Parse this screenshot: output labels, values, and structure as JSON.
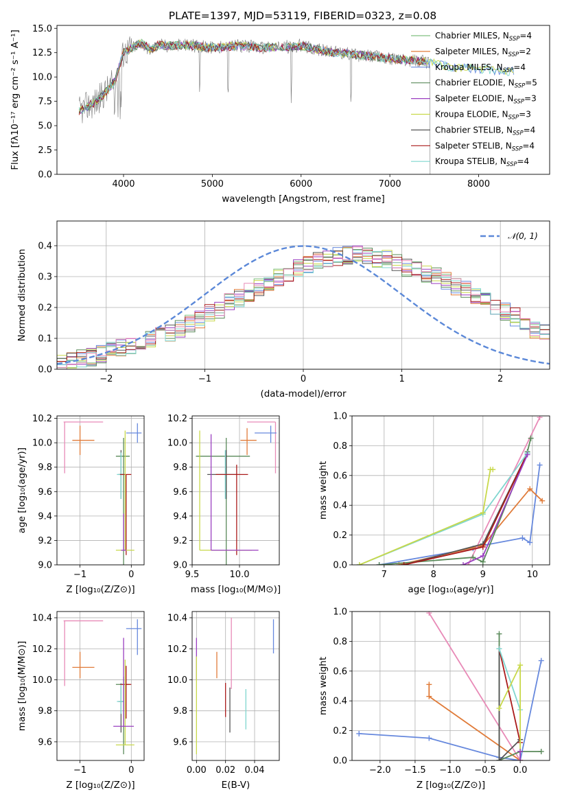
{
  "figure": {
    "title": "PLATE=1397, MJD=53119, FIBERID=0323, z=0.08"
  },
  "colors": {
    "mpl_blue": "#6688dd",
    "mpl_orange": "#e07b39",
    "mpl_green": "#5a8a5a",
    "mpl_purple": "#9a3fc0",
    "mpl_yellow": "#c8d84a",
    "mpl_dgray": "#555555",
    "mpl_red": "#aa1a1a",
    "mpl_cyan": "#7fd6cf",
    "mpl_pink": "#e88ab7"
  },
  "chart_data": [
    {
      "type": "line",
      "panel": "spectrum",
      "xlabel": "wavelength [Angstrom, rest frame]",
      "ylabel": "Flux [fλ10⁻¹⁷ erg cm⁻² s⁻¹ A⁻¹]",
      "xlim": [
        3250,
        8800
      ],
      "ylim": [
        0,
        15.3
      ],
      "xticks": [
        4000,
        5000,
        6000,
        7000,
        8000
      ],
      "yticks": [
        0.0,
        2.5,
        5.0,
        7.5,
        10.0,
        12.5,
        15.0
      ],
      "legend_position": "upper right",
      "legend": [
        {
          "label": "Chabrier MILES, N",
          "sub": "SSP",
          "eq": "=4",
          "color": "#7fbf7f"
        },
        {
          "label": "Salpeter MILES, N",
          "sub": "SSP",
          "eq": "=2",
          "color": "#e07b39"
        },
        {
          "label": "Kroupa MILES, N",
          "sub": "SSP",
          "eq": "=4",
          "color": "#6688dd"
        },
        {
          "label": "Chabrier ELODIE, N",
          "sub": "SSP",
          "eq": "=5",
          "color": "#5a8a5a"
        },
        {
          "label": "Salpeter ELODIE, N",
          "sub": "SSP",
          "eq": "=3",
          "color": "#9a3fc0"
        },
        {
          "label": "Kroupa ELODIE, N",
          "sub": "SSP",
          "eq": "=3",
          "color": "#c8d84a"
        },
        {
          "label": "Chabrier STELIB, N",
          "sub": "SSP",
          "eq": "=4",
          "color": "#555555"
        },
        {
          "label": "Salpeter STELIB, N",
          "sub": "SSP",
          "eq": "=4",
          "color": "#aa1a1a"
        },
        {
          "label": "Kroupa STELIB, N",
          "sub": "SSP",
          "eq": "=4",
          "color": "#7fd6cf"
        }
      ],
      "data_continuum": {
        "x": [
          3500,
          3600,
          3700,
          3800,
          3900,
          4000,
          4100,
          4200,
          4300,
          4400,
          4500,
          4700,
          5000,
          5300,
          5600,
          6000,
          6300,
          6600,
          6900,
          7100,
          7300,
          7450,
          7700,
          8000,
          8300,
          8700
        ],
        "y": [
          6.5,
          7.0,
          7.5,
          8.5,
          9.5,
          12.5,
          13.0,
          13.5,
          12.8,
          13.3,
          13.2,
          13.3,
          13.0,
          13.2,
          13.0,
          13.2,
          12.6,
          12.3,
          12.0,
          11.8,
          11.7,
          11.5,
          11.0,
          10.8,
          10.6,
          10.5
        ]
      }
    },
    {
      "type": "histogram",
      "panel": "residuals",
      "xlabel": "(data-model)/error",
      "ylabel": "Normed distribution",
      "xlim": [
        -2.5,
        2.5
      ],
      "ylim": [
        0,
        0.48
      ],
      "xticks": [
        -2,
        -1,
        0,
        1,
        2
      ],
      "yticks": [
        0.0,
        0.1,
        0.2,
        0.3,
        0.4
      ],
      "legend_position": "upper right",
      "reference_curve": {
        "label": "𝒩(0, 1)",
        "mean": 0,
        "sigma": 1,
        "color": "#5b88d8"
      },
      "bins": {
        "start": -2.5,
        "width": 0.1,
        "count": 50
      },
      "base_profile": [
        0.02,
        0.03,
        0.035,
        0.04,
        0.05,
        0.06,
        0.07,
        0.08,
        0.085,
        0.095,
        0.105,
        0.115,
        0.13,
        0.145,
        0.16,
        0.18,
        0.195,
        0.215,
        0.23,
        0.25,
        0.265,
        0.28,
        0.3,
        0.31,
        0.33,
        0.34,
        0.35,
        0.36,
        0.365,
        0.37,
        0.37,
        0.365,
        0.36,
        0.355,
        0.345,
        0.33,
        0.32,
        0.31,
        0.3,
        0.285,
        0.27,
        0.255,
        0.24,
        0.22,
        0.2,
        0.185,
        0.17,
        0.15,
        0.13,
        0.115
      ],
      "series": [
        {
          "color": "#7fbf7f",
          "offsets_seed": 1
        },
        {
          "color": "#e07b39",
          "offsets_seed": 2
        },
        {
          "color": "#6688dd",
          "offsets_seed": 3
        },
        {
          "color": "#5a8a5a",
          "offsets_seed": 4
        },
        {
          "color": "#9a3fc0",
          "offsets_seed": 5
        },
        {
          "color": "#c8d84a",
          "offsets_seed": 6
        },
        {
          "color": "#555555",
          "offsets_seed": 7
        },
        {
          "color": "#aa1a1a",
          "offsets_seed": 8
        },
        {
          "color": "#7fd6cf",
          "offsets_seed": 9
        },
        {
          "color": "#e88ab7",
          "offsets_seed": 10
        }
      ]
    },
    {
      "type": "scatter",
      "panel": "age_vs_Z",
      "xlabel": "Z [log₁₀(Z/Z⊙)]",
      "ylabel": "age  [log₁₀(age/yr)]",
      "xlim": [
        -1.45,
        0.25
      ],
      "ylim": [
        9.0,
        10.22
      ],
      "xticks": [
        -1,
        0
      ],
      "yticks": [
        9.0,
        9.2,
        9.4,
        9.6,
        9.8,
        10.0,
        10.2
      ],
      "points": [
        {
          "x": -1.3,
          "y": 10.17,
          "xerr": [
            0.02,
            0.75
          ],
          "yerr": [
            0.42,
            0.0
          ],
          "color": "#e88ab7"
        },
        {
          "x": -1.0,
          "y": 10.02,
          "xerr": [
            0.15,
            0.28
          ],
          "yerr": [
            0.12,
            0.12
          ],
          "color": "#e07b39"
        },
        {
          "x": 0.12,
          "y": 10.08,
          "xerr": [
            0.22,
            0.08
          ],
          "yerr": [
            0.08,
            0.08
          ],
          "color": "#6688dd"
        },
        {
          "x": -0.15,
          "y": 9.89,
          "xerr": [
            0.15,
            0.12
          ],
          "yerr": [
            0.89,
            0.15
          ],
          "color": "#5a8a5a"
        },
        {
          "x": -0.2,
          "y": 9.74,
          "xerr": [
            0.05,
            0.05
          ],
          "yerr": [
            0.2,
            0.2
          ],
          "color": "#555555"
        },
        {
          "x": -0.2,
          "y": 9.74,
          "xerr": [
            0.08,
            0.05
          ],
          "yerr": [
            0.2,
            0.18
          ],
          "color": "#7fd6cf"
        },
        {
          "x": -0.1,
          "y": 9.74,
          "xerr": [
            0.12,
            0.1
          ],
          "yerr": [
            0.66,
            0.0
          ],
          "color": "#aa1a1a"
        },
        {
          "x": -0.12,
          "y": 9.12,
          "xerr": [
            0.18,
            0.18
          ],
          "yerr": [
            0.0,
            0.98
          ],
          "color": "#c8d84a"
        },
        {
          "x": -0.15,
          "y": 9.12,
          "xerr": [
            0.05,
            0.05
          ],
          "yerr": [
            0.0,
            0.3
          ],
          "color": "#9a3fc0"
        }
      ]
    },
    {
      "type": "scatter",
      "panel": "age_vs_mass",
      "xlabel": "mass [log₁₀(M/M⊙)]",
      "ylabel": "",
      "xlim": [
        9.5,
        10.42
      ],
      "ylim": [
        9.0,
        10.22
      ],
      "xticks": [
        9.5,
        10.0
      ],
      "yticks": [
        9.0,
        9.2,
        9.4,
        9.6,
        9.8,
        10.0,
        10.2
      ],
      "points": [
        {
          "x": 10.38,
          "y": 10.17,
          "xerr": [
            0.3,
            0.0
          ],
          "yerr": [
            0.42,
            0.0
          ],
          "color": "#e88ab7"
        },
        {
          "x": 10.08,
          "y": 10.02,
          "xerr": [
            0.07,
            0.1
          ],
          "yerr": [
            0.12,
            0.1
          ],
          "color": "#e07b39"
        },
        {
          "x": 10.33,
          "y": 10.08,
          "xerr": [
            0.17,
            0.06
          ],
          "yerr": [
            0.08,
            0.06
          ],
          "color": "#6688dd"
        },
        {
          "x": 9.86,
          "y": 9.89,
          "xerr": [
            0.32,
            0.25
          ],
          "yerr": [
            0.89,
            0.15
          ],
          "color": "#5a8a5a"
        },
        {
          "x": 9.86,
          "y": 9.74,
          "xerr": [
            0.2,
            0.12
          ],
          "yerr": [
            0.2,
            0.2
          ],
          "color": "#555555"
        },
        {
          "x": 9.85,
          "y": 9.74,
          "xerr": [
            0.08,
            0.12
          ],
          "yerr": [
            0.2,
            0.2
          ],
          "color": "#7fd6cf"
        },
        {
          "x": 9.97,
          "y": 9.74,
          "xerr": [
            0.22,
            0.12
          ],
          "yerr": [
            0.66,
            0.08
          ],
          "color": "#aa1a1a"
        },
        {
          "x": 9.58,
          "y": 9.12,
          "xerr": [
            0.0,
            0.55
          ],
          "yerr": [
            0.0,
            0.98
          ],
          "color": "#c8d84a"
        },
        {
          "x": 9.7,
          "y": 9.12,
          "xerr": [
            0.0,
            0.5
          ],
          "yerr": [
            0.0,
            0.95
          ],
          "color": "#9a3fc0"
        }
      ]
    },
    {
      "type": "line",
      "panel": "massweight_vs_age",
      "xlabel": "age  [log₁₀(age/yr)]",
      "ylabel": "mass weight",
      "xlim": [
        6.35,
        10.35
      ],
      "ylim": [
        0,
        1.0
      ],
      "xticks": [
        7,
        8,
        9,
        10
      ],
      "yticks": [
        0.0,
        0.2,
        0.4,
        0.6,
        0.8,
        1.0
      ],
      "series": [
        {
          "color": "#6688dd",
          "x": [
            6.9,
            8.8,
            9.0,
            9.8,
            9.95,
            10.15
          ],
          "y": [
            0.0,
            0.11,
            0.13,
            0.18,
            0.15,
            0.67
          ]
        },
        {
          "color": "#e07b39",
          "x": [
            7.3,
            9.0,
            9.95,
            10.2
          ],
          "y": [
            0.0,
            0.13,
            0.51,
            0.43
          ]
        },
        {
          "color": "#e88ab7",
          "x": [
            8.7,
            10.15
          ],
          "y": [
            0.0,
            0.99
          ]
        },
        {
          "color": "#5a8a5a",
          "x": [
            6.9,
            8.8,
            9.0,
            9.9,
            9.97
          ],
          "y": [
            0.0,
            0.05,
            0.02,
            0.76,
            0.85
          ]
        },
        {
          "color": "#555555",
          "x": [
            7.4,
            9.0,
            9.9
          ],
          "y": [
            0.0,
            0.14,
            0.75
          ]
        },
        {
          "color": "#aa1a1a",
          "x": [
            7.4,
            9.0,
            9.9
          ],
          "y": [
            0.0,
            0.12,
            0.75
          ]
        },
        {
          "color": "#7fd6cf",
          "x": [
            6.5,
            9.0,
            9.9
          ],
          "y": [
            0.0,
            0.34,
            0.75
          ]
        },
        {
          "color": "#c8d84a",
          "x": [
            6.5,
            9.0,
            9.15,
            9.2
          ],
          "y": [
            0.0,
            0.35,
            0.64,
            0.64
          ]
        },
        {
          "color": "#9a3fc0",
          "x": [
            8.6,
            9.0,
            9.9
          ],
          "y": [
            0.0,
            0.06,
            0.74
          ]
        }
      ]
    },
    {
      "type": "scatter",
      "panel": "mass_vs_Z",
      "xlabel": "Z [log₁₀(Z/Z⊙)]",
      "ylabel": "mass [log₁₀(M/M⊙)]",
      "xlim": [
        -1.45,
        0.25
      ],
      "ylim": [
        9.48,
        10.44
      ],
      "xticks": [
        -1,
        0
      ],
      "yticks": [
        9.6,
        9.8,
        10.0,
        10.2,
        10.4
      ],
      "points": [
        {
          "x": -1.3,
          "y": 10.38,
          "xerr": [
            0.02,
            0.75
          ],
          "yerr": [
            0.42,
            0.0
          ],
          "color": "#e88ab7"
        },
        {
          "x": -1.0,
          "y": 10.08,
          "xerr": [
            0.15,
            0.28
          ],
          "yerr": [
            0.07,
            0.1
          ],
          "color": "#e07b39"
        },
        {
          "x": 0.12,
          "y": 10.33,
          "xerr": [
            0.22,
            0.08
          ],
          "yerr": [
            0.17,
            0.06
          ],
          "color": "#6688dd"
        },
        {
          "x": -0.15,
          "y": 9.97,
          "xerr": [
            0.15,
            0.12
          ],
          "yerr": [
            0.45,
            0.05
          ],
          "color": "#5a8a5a"
        },
        {
          "x": -0.2,
          "y": 9.86,
          "xerr": [
            0.05,
            0.05
          ],
          "yerr": [
            0.2,
            0.1
          ],
          "color": "#555555"
        },
        {
          "x": -0.2,
          "y": 9.86,
          "xerr": [
            0.08,
            0.05
          ],
          "yerr": [
            0.08,
            0.12
          ],
          "color": "#7fd6cf"
        },
        {
          "x": -0.1,
          "y": 9.97,
          "xerr": [
            0.12,
            0.1
          ],
          "yerr": [
            0.22,
            0.12
          ],
          "color": "#aa1a1a"
        },
        {
          "x": -0.12,
          "y": 9.58,
          "xerr": [
            0.18,
            0.18
          ],
          "yerr": [
            0.0,
            0.55
          ],
          "color": "#c8d84a"
        },
        {
          "x": -0.15,
          "y": 9.7,
          "xerr": [
            0.2,
            0.2
          ],
          "yerr": [
            0.0,
            0.57
          ],
          "color": "#9a3fc0"
        }
      ]
    },
    {
      "type": "scatter",
      "panel": "mass_vs_EBV",
      "xlabel": "E(B-V)",
      "ylabel": "",
      "xlim": [
        -0.003,
        0.057
      ],
      "ylim": [
        9.48,
        10.44
      ],
      "xticks": [
        0.0,
        0.02,
        0.04
      ],
      "yticks": [
        9.6,
        9.8,
        10.0,
        10.2,
        10.4
      ],
      "points": [
        {
          "x": 0.0,
          "y": 10.2,
          "yerr": [
            0.2,
            0.07
          ],
          "color": "#9a3fc0"
        },
        {
          "x": 0.0,
          "y": 9.8,
          "yerr": [
            0.28,
            0.35
          ],
          "color": "#c8d84a"
        },
        {
          "x": 0.014,
          "y": 10.08,
          "yerr": [
            0.07,
            0.1
          ],
          "color": "#e07b39"
        },
        {
          "x": 0.02,
          "y": 9.86,
          "yerr": [
            0.1,
            0.12
          ],
          "color": "#aa1a1a"
        },
        {
          "x": 0.024,
          "y": 10.17,
          "yerr": [
            0.23,
            0.23
          ],
          "color": "#e88ab7"
        },
        {
          "x": 0.023,
          "y": 9.81,
          "yerr": [
            0.15,
            0.14
          ],
          "color": "#555555"
        },
        {
          "x": 0.034,
          "y": 9.81,
          "yerr": [
            0.13,
            0.13
          ],
          "color": "#7fd6cf"
        },
        {
          "x": 0.053,
          "y": 10.28,
          "yerr": [
            0.11,
            0.11
          ],
          "color": "#6688dd"
        }
      ]
    },
    {
      "type": "line",
      "panel": "massweight_vs_Z",
      "xlabel": "Z [log₁₀(Z/Z⊙)]",
      "ylabel": "mass weight",
      "xlim": [
        -2.4,
        0.42
      ],
      "ylim": [
        0,
        1.0
      ],
      "xticks": [
        -2.0,
        -1.5,
        -1.0,
        -0.5,
        0.0
      ],
      "yticks": [
        0.0,
        0.2,
        0.4,
        0.6,
        0.8,
        1.0
      ],
      "series": [
        {
          "color": "#6688dd",
          "x": [
            -2.3,
            -1.3,
            -0.3,
            0.0,
            0.3
          ],
          "y": [
            0.18,
            0.15,
            0.02,
            0.0,
            0.67
          ]
        },
        {
          "color": "#e07b39",
          "x": [
            -1.3,
            -1.3,
            0.0
          ],
          "y": [
            0.51,
            0.43,
            0.0
          ]
        },
        {
          "color": "#e88ab7",
          "x": [
            -1.3,
            0.0
          ],
          "y": [
            0.99,
            0.0
          ]
        },
        {
          "color": "#5a8a5a",
          "x": [
            -0.3,
            -0.3,
            0.0,
            0.3
          ],
          "y": [
            0.85,
            0.0,
            0.06,
            0.06
          ]
        },
        {
          "color": "#555555",
          "x": [
            -0.3,
            -0.3,
            0.0
          ],
          "y": [
            0.75,
            0.0,
            0.14
          ]
        },
        {
          "color": "#aa1a1a",
          "x": [
            -0.3,
            0.0
          ],
          "y": [
            0.75,
            0.12
          ]
        },
        {
          "color": "#7fd6cf",
          "x": [
            -0.3,
            0.0
          ],
          "y": [
            0.75,
            0.34
          ]
        },
        {
          "color": "#c8d84a",
          "x": [
            -0.3,
            0.0,
            0.0
          ],
          "y": [
            0.35,
            0.64,
            0.0
          ]
        },
        {
          "color": "#9a3fc0",
          "x": [
            0.0,
            0.0
          ],
          "y": [
            0.0,
            0.06
          ]
        }
      ]
    }
  ]
}
